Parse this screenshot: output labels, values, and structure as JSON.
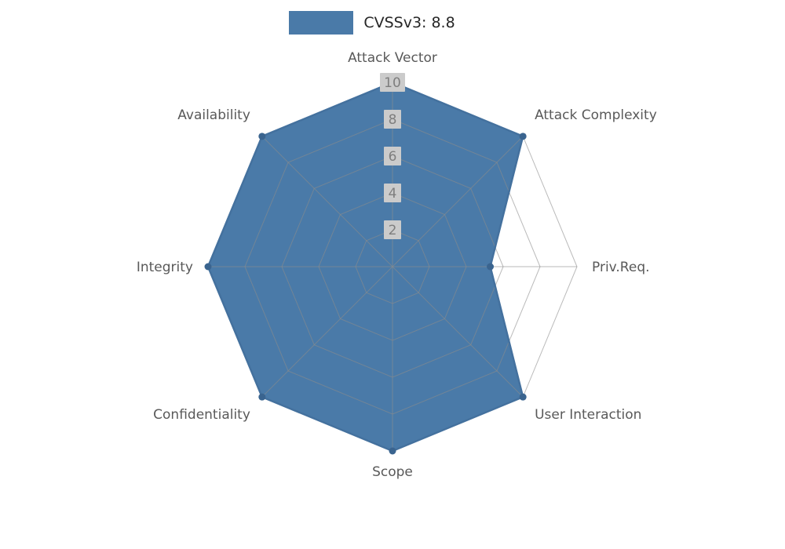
{
  "legend": {
    "label": "CVSSv3: 8.8",
    "swatch_color": "#4a7aa8"
  },
  "chart_data": {
    "type": "radar",
    "title": "CVSSv3: 8.8",
    "categories": [
      "Attack Vector",
      "Attack Complexity",
      "Priv.Req.",
      "User Interaction",
      "Scope",
      "Confidentiality",
      "Integrity",
      "Availability"
    ],
    "series": [
      {
        "name": "CVSSv3: 8.8",
        "values": [
          10,
          10,
          5.3,
          10,
          10,
          10,
          10,
          10
        ],
        "fill_color": "#4a7aa8",
        "fill_opacity": 1,
        "stroke_color": "#44719e",
        "marker_color": "#3a648f"
      }
    ],
    "radial_ticks": [
      2,
      4,
      6,
      8,
      10
    ],
    "rlim": [
      0,
      10
    ],
    "start_axis": "top",
    "direction": "clockwise",
    "grid": true,
    "grid_color": "#8c8c8c",
    "grid_opacity": 0.6,
    "tick_label_bg": "#cbcbcb",
    "tick_label_color": "#7e7e7e",
    "axis_label_color": "#595959",
    "legend_position": "top-center",
    "background": "#ffffff"
  }
}
